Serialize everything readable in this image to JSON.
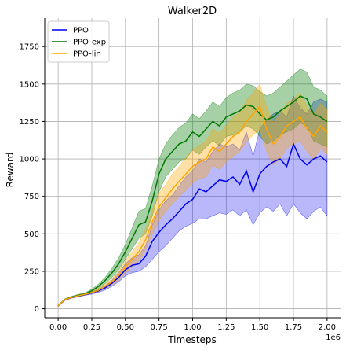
{
  "chart_data": {
    "type": "line",
    "title": "Walker2D",
    "xlabel": "Timesteps",
    "ylabel": "Reward",
    "x_offset_label": "1e6",
    "xlim": [
      -0.1,
      2.1
    ],
    "ylim": [
      -60,
      1940
    ],
    "xticks": [
      0.0,
      0.25,
      0.5,
      0.75,
      1.0,
      1.25,
      1.5,
      1.75,
      2.0
    ],
    "xtick_labels": [
      "0.00",
      "0.25",
      "0.50",
      "0.75",
      "1.00",
      "1.25",
      "1.50",
      "1.75",
      "2.00"
    ],
    "yticks": [
      0,
      250,
      500,
      750,
      1000,
      1250,
      1500,
      1750
    ],
    "ytick_labels": [
      "0",
      "250",
      "500",
      "750",
      "1000",
      "1250",
      "1500",
      "1750"
    ],
    "grid": true,
    "legend_position": "top-left",
    "x": [
      0,
      0.05,
      0.1,
      0.15,
      0.2,
      0.25,
      0.3,
      0.35,
      0.4,
      0.45,
      0.5,
      0.55,
      0.6,
      0.65,
      0.7,
      0.75,
      0.8,
      0.85,
      0.9,
      0.95,
      1.0,
      1.05,
      1.1,
      1.15,
      1.2,
      1.25,
      1.3,
      1.35,
      1.4,
      1.45,
      1.5,
      1.55,
      1.6,
      1.65,
      1.7,
      1.75,
      1.8,
      1.85,
      1.9,
      1.95,
      2.0
    ],
    "series": [
      {
        "name": "PPO",
        "color": "#0000ee",
        "values": [
          20,
          60,
          75,
          85,
          95,
          105,
          120,
          140,
          170,
          210,
          260,
          290,
          300,
          350,
          450,
          510,
          560,
          600,
          650,
          700,
          730,
          800,
          780,
          820,
          860,
          850,
          880,
          830,
          920,
          780,
          900,
          950,
          980,
          1000,
          950,
          1100,
          1000,
          960,
          1000,
          1020,
          980
        ],
        "lower": [
          15,
          55,
          70,
          80,
          90,
          98,
          110,
          125,
          150,
          180,
          220,
          240,
          250,
          280,
          330,
          380,
          420,
          470,
          520,
          550,
          570,
          600,
          600,
          620,
          640,
          630,
          660,
          620,
          660,
          560,
          640,
          680,
          650,
          700,
          620,
          700,
          640,
          600,
          650,
          680,
          620
        ],
        "upper": [
          25,
          65,
          80,
          90,
          100,
          112,
          130,
          155,
          190,
          240,
          300,
          340,
          360,
          420,
          560,
          660,
          720,
          760,
          820,
          880,
          920,
          1000,
          980,
          1050,
          1100,
          1080,
          1100,
          1060,
          1180,
          1020,
          1200,
          1260,
          1300,
          1320,
          1280,
          1420,
          1340,
          1300,
          1380,
          1400,
          1380
        ]
      },
      {
        "name": "PPO-exp",
        "color": "#007700",
        "values": [
          20,
          62,
          78,
          90,
          100,
          120,
          150,
          190,
          240,
          300,
          380,
          470,
          560,
          580,
          720,
          900,
          1000,
          1050,
          1100,
          1120,
          1180,
          1150,
          1200,
          1250,
          1220,
          1280,
          1300,
          1320,
          1360,
          1350,
          1300,
          1260,
          1280,
          1320,
          1350,
          1380,
          1420,
          1400,
          1300,
          1280,
          1250
        ],
        "lower": [
          15,
          57,
          72,
          84,
          93,
          110,
          135,
          170,
          210,
          260,
          330,
          400,
          470,
          500,
          620,
          780,
          880,
          930,
          980,
          1000,
          1060,
          1030,
          1080,
          1120,
          1090,
          1150,
          1160,
          1180,
          1220,
          1200,
          1150,
          1100,
          1120,
          1160,
          1180,
          1200,
          1240,
          1220,
          1120,
          1100,
          1080
        ],
        "upper": [
          25,
          67,
          84,
          96,
          107,
          130,
          165,
          210,
          270,
          340,
          430,
          540,
          650,
          670,
          820,
          1000,
          1100,
          1160,
          1210,
          1240,
          1300,
          1270,
          1320,
          1380,
          1350,
          1410,
          1440,
          1460,
          1500,
          1490,
          1450,
          1420,
          1440,
          1480,
          1520,
          1560,
          1600,
          1580,
          1480,
          1460,
          1420
        ]
      },
      {
        "name": "PPO-lin",
        "color": "#ffa500",
        "values": [
          20,
          61,
          76,
          87,
          97,
          108,
          125,
          150,
          180,
          220,
          280,
          330,
          380,
          460,
          580,
          680,
          740,
          800,
          850,
          900,
          950,
          980,
          1000,
          1080,
          1050,
          1100,
          1150,
          1180,
          1250,
          1300,
          1350,
          1200,
          1100,
          1150,
          1220,
          1250,
          1280,
          1200,
          1150,
          1220,
          1180
        ],
        "lower": [
          15,
          56,
          71,
          82,
          91,
          100,
          115,
          135,
          160,
          190,
          240,
          280,
          320,
          390,
          500,
          590,
          650,
          700,
          750,
          790,
          840,
          870,
          880,
          960,
          930,
          980,
          1020,
          1050,
          1110,
          1160,
          1200,
          1050,
          960,
          1000,
          1070,
          1100,
          1120,
          1050,
          1000,
          1070,
          1030
        ],
        "upper": [
          25,
          66,
          81,
          92,
          103,
          116,
          135,
          165,
          200,
          250,
          320,
          380,
          440,
          530,
          660,
          770,
          830,
          900,
          950,
          1010,
          1060,
          1090,
          1120,
          1200,
          1170,
          1220,
          1280,
          1310,
          1390,
          1440,
          1500,
          1350,
          1240,
          1300,
          1370,
          1400,
          1440,
          1350,
          1300,
          1370,
          1330
        ]
      }
    ]
  }
}
